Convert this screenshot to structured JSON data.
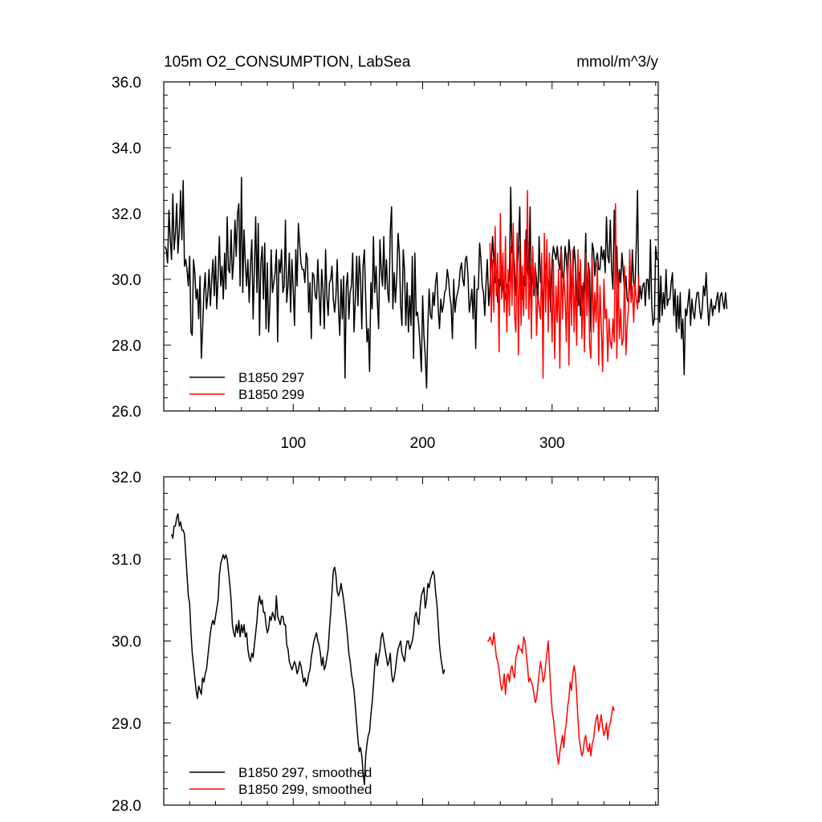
{
  "chart_data": [
    {
      "type": "line",
      "title": "105m O2_CONSUMPTION, LabSea",
      "units": "mmol/m^3/y",
      "xlim": [
        0,
        382
      ],
      "ylim": [
        26.0,
        36.0
      ],
      "x_ticks": [
        100,
        200,
        300
      ],
      "x_tick_labels": [
        "100",
        "200",
        "300"
      ],
      "y_ticks": [
        26.0,
        28.0,
        30.0,
        32.0,
        34.0,
        36.0
      ],
      "y_tick_labels": [
        "26.0",
        "28.0",
        "30.0",
        "32.0",
        "34.0",
        "36.0"
      ],
      "legend_position": "bottom-left",
      "series": [
        {
          "name": "B1850 297",
          "color": "#000000",
          "x_start": 1,
          "values": [
            31.0,
            30.9,
            30.5,
            32.1,
            31.2,
            30.6,
            32.6,
            30.9,
            31.4,
            32.3,
            30.8,
            31.5,
            32.7,
            31.2,
            33.0,
            30.4,
            30.6,
            30.3,
            29.8,
            30.7,
            28.4,
            28.3,
            30.6,
            30.2,
            29.4,
            29.7,
            28.8,
            30.1,
            27.6,
            28.5,
            29.6,
            30.2,
            29.1,
            29.5,
            30.3,
            29.2,
            30.0,
            30.6,
            29.5,
            30.7,
            29.1,
            30.1,
            31.3,
            29.8,
            30.4,
            29.4,
            30.8,
            29.7,
            31.9,
            30.3,
            30.2,
            31.5,
            30.0,
            30.6,
            31.8,
            30.7,
            32.0,
            32.3,
            29.8,
            33.1,
            29.6,
            31.5,
            30.5,
            29.8,
            30.6,
            29.3,
            30.4,
            31.2,
            28.8,
            30.3,
            31.9,
            29.6,
            31.7,
            28.3,
            30.5,
            31.0,
            29.4,
            31.1,
            28.5,
            30.5,
            28.4,
            29.2,
            30.9,
            29.6,
            29.9,
            30.2,
            30.9,
            28.1,
            30.6,
            30.2,
            30.9,
            29.6,
            29.8,
            31.8,
            29.3,
            29.8,
            30.8,
            29.0,
            30.6,
            29.7,
            28.6,
            30.9,
            29.8,
            31.7,
            31.1,
            30.5,
            30.3,
            30.3,
            29.9,
            30.8,
            30.6,
            29.0,
            29.9,
            28.2,
            30.2,
            30.1,
            29.5,
            29.4,
            30.6,
            29.6,
            28.6,
            30.3,
            29.7,
            28.5,
            30.9,
            29.5,
            28.9,
            29.9,
            30.0,
            30.4,
            29.4,
            29.0,
            29.5,
            30.6,
            29.1,
            28.3,
            30.0,
            28.8,
            30.1,
            27.0,
            29.8,
            30.2,
            28.8,
            29.6,
            29.8,
            30.8,
            28.4,
            29.4,
            30.7,
            29.2,
            30.7,
            30.1,
            28.5,
            30.4,
            30.9,
            29.4,
            28.1,
            28.5,
            27.2,
            29.9,
            29.1,
            31.3,
            29.6,
            30.4,
            29.3,
            28.5,
            31.2,
            30.3,
            29.8,
            31.3,
            29.7,
            30.6,
            29.6,
            29.3,
            31.5,
            32.2,
            29.1,
            30.2,
            29.3,
            30.1,
            31.4,
            30.8,
            29.2,
            28.6,
            30.9,
            30.3,
            28.6,
            29.9,
            28.4,
            29.5,
            28.6,
            30.7,
            27.6,
            30.8,
            28.9,
            29.0,
            28.6,
            28.0,
            27.2,
            29.5,
            28.3,
            27.7,
            26.7,
            28.6,
            29.7,
            28.9,
            28.8,
            29.6,
            29.2,
            29.9,
            30.2,
            29.1,
            28.5,
            29.4,
            29.0,
            29.2,
            29.6,
            29.7,
            30.3,
            30.0,
            29.5,
            29.2,
            28.2,
            30.0,
            29.0,
            29.4,
            29.6,
            29.8,
            30.3,
            30.5,
            30.0,
            29.8,
            30.6,
            30.7,
            30.1,
            29.0,
            29.3,
            29.7,
            28.8,
            30.1,
            27.9,
            29.7,
            29.7,
            31.1,
            30.6,
            29.8,
            29.6,
            28.9,
            29.9,
            30.6,
            29.2,
            29.8,
            30.5,
            31.3,
            30.6,
            29.9,
            30.1,
            29.3,
            30.0,
            29.8,
            30.4,
            29.8,
            29.3,
            29.5,
            29.8,
            29.9,
            30.0,
            32.8,
            30.8,
            31.0,
            30.4,
            29.5,
            30.3,
            30.9,
            32.2,
            29.7,
            29.4,
            30.1,
            29.8,
            31.5,
            30.3,
            30.0,
            32.2,
            29.0,
            30.6,
            29.5,
            30.4,
            30.0,
            29.3,
            31.3,
            29.9,
            30.0,
            28.9,
            30.7,
            30.3,
            30.3,
            29.6,
            30.0,
            29.0,
            30.6,
            31.0,
            30.8,
            30.6,
            31.0,
            30.5,
            30.3,
            31.0,
            30.1,
            30.0,
            31.0,
            30.6,
            29.9,
            31.2,
            30.8,
            29.5,
            30.1,
            31.0,
            30.5,
            29.4,
            29.2,
            30.2,
            28.9,
            29.8,
            29.1,
            29.9,
            31.4,
            29.1,
            30.5,
            30.2,
            28.4,
            31.1,
            30.9,
            30.1,
            30.6,
            30.8,
            30.3,
            30.3,
            31.0,
            30.6,
            30.9,
            30.2,
            31.9,
            30.7,
            30.5,
            31.8,
            30.3,
            29.7,
            32.1,
            30.5,
            31.0,
            29.4,
            30.3,
            29.9,
            30.8,
            30.2,
            29.6,
            30.1,
            29.4,
            29.3,
            30.0,
            29.5,
            30.9,
            29.9,
            29.7,
            31.0,
            32.7,
            29.3,
            29.8,
            29.4,
            29.8,
            29.9,
            29.2,
            30.0,
            30.0,
            29.4,
            31.2,
            29.2,
            28.6,
            28.8,
            31.0,
            30.6,
            30.6,
            28.7,
            30.1,
            28.9,
            29.6,
            29.1,
            30.3,
            29.2,
            29.4,
            29.4,
            29.9,
            30.2,
            28.9,
            29.7,
            28.4,
            29.5,
            28.5,
            29.6,
            28.2,
            28.8,
            27.1,
            29.1,
            28.9,
            29.3,
            29.7,
            28.6,
            29.4,
            29.0,
            28.8,
            29.3,
            29.6,
            29.6,
            29.1,
            28.8,
            29.1,
            29.8,
            29.5,
            30.2,
            29.3,
            28.6,
            29.1,
            29.4,
            28.9,
            29.2,
            29.1,
            29.4,
            29.6,
            29.0,
            29.5,
            29.6,
            29.3,
            29.1,
            29.6,
            29.1
          ]
        },
        {
          "name": "B1850 299",
          "color": "#ff0000",
          "x_start": 252,
          "values": [
            31.1,
            28.7,
            30.6,
            29.0,
            31.6,
            29.5,
            30.8,
            27.8,
            32.0,
            29.4,
            30.8,
            29.0,
            31.3,
            28.4,
            30.3,
            28.9,
            31.0,
            29.2,
            31.7,
            28.9,
            28.4,
            31.4,
            27.7,
            31.0,
            28.6,
            30.4,
            28.9,
            31.2,
            29.1,
            32.7,
            28.8,
            30.4,
            28.2,
            31.0,
            29.7,
            30.5,
            28.3,
            29.5,
            29.2,
            28.8,
            30.8,
            27.0,
            31.4,
            29.0,
            31.2,
            28.4,
            30.8,
            29.6,
            28.1,
            30.6,
            27.6,
            29.8,
            28.7,
            30.3,
            27.3,
            30.9,
            28.8,
            30.2,
            29.5,
            28.1,
            30.8,
            27.4,
            30.5,
            28.6,
            30.9,
            28.4,
            30.1,
            28.0,
            30.9,
            29.2,
            30.6,
            28.2,
            29.9,
            27.8,
            30.8,
            28.9,
            30.4,
            28.0,
            27.6,
            30.6,
            28.4,
            29.6,
            28.7,
            30.5,
            27.4,
            29.8,
            28.6,
            27.2,
            30.0,
            28.8,
            29.1,
            27.5,
            28.8,
            28.1,
            27.9,
            28.8,
            28.1,
            32.3,
            27.6,
            30.2,
            28.2,
            29.1,
            28.0,
            28.2,
            30.4,
            27.7,
            28.6,
            29.1,
            30.9,
            29.3,
            29.8,
            28.7,
            29.9,
            29.4,
            29.1,
            30.1
          ]
        }
      ]
    },
    {
      "type": "line",
      "title": "",
      "xlim": [
        0,
        382
      ],
      "ylim": [
        28.0,
        32.0
      ],
      "x_ticks": [
        100,
        200,
        300
      ],
      "y_ticks": [
        28.0,
        29.0,
        30.0,
        31.0,
        32.0
      ],
      "y_tick_labels": [
        "28.0",
        "29.0",
        "30.0",
        "31.0",
        "32.0"
      ],
      "legend_position": "bottom-left",
      "series": [
        {
          "name": "B1850 297, smoothed",
          "color": "#000000",
          "x_start": 6,
          "values": [
            31.3,
            31.25,
            31.4,
            31.4,
            31.5,
            31.55,
            31.4,
            31.45,
            31.35,
            31.35,
            31.3,
            31.05,
            30.8,
            30.55,
            30.45,
            30.1,
            29.85,
            29.7,
            29.55,
            29.4,
            29.3,
            29.45,
            29.4,
            29.35,
            29.55,
            29.5,
            29.6,
            29.65,
            29.8,
            29.95,
            30.1,
            30.2,
            30.25,
            30.2,
            30.3,
            30.4,
            30.5,
            30.8,
            30.95,
            31.0,
            31.05,
            31.0,
            31.05,
            31.0,
            30.85,
            30.7,
            30.5,
            30.2,
            30.1,
            30.05,
            30.2,
            30.1,
            30.25,
            30.05,
            30.2,
            30.1,
            30.2,
            30.05,
            30.1,
            29.9,
            29.8,
            29.75,
            29.85,
            29.8,
            29.95,
            30.1,
            30.25,
            30.45,
            30.55,
            30.45,
            30.5,
            30.35,
            30.35,
            30.2,
            30.1,
            30.15,
            30.3,
            30.25,
            30.35,
            30.3,
            30.25,
            30.55,
            30.3,
            30.25,
            30.2,
            30.3,
            30.3,
            30.2,
            30.2,
            29.95,
            29.9,
            29.75,
            29.7,
            29.65,
            29.7,
            29.75,
            29.7,
            29.6,
            29.65,
            29.75,
            29.7,
            29.6,
            29.5,
            29.55,
            29.45,
            29.5,
            29.6,
            29.65,
            29.8,
            29.9,
            30.0,
            30.05,
            30.1,
            30.0,
            29.95,
            29.85,
            29.7,
            29.8,
            29.65,
            29.7,
            29.8,
            29.9,
            30.15,
            30.35,
            30.6,
            30.85,
            30.9,
            30.8,
            30.6,
            30.55,
            30.6,
            30.7,
            30.6,
            30.5,
            30.35,
            30.2,
            30.05,
            29.85,
            29.75,
            29.6,
            29.5,
            29.4,
            29.2,
            29.0,
            28.8,
            28.65,
            28.7,
            28.6,
            28.4,
            28.25,
            28.6,
            28.75,
            28.85,
            28.9,
            29.1,
            29.25,
            29.45,
            29.7,
            29.85,
            29.7,
            29.8,
            29.9,
            30.05,
            30.1,
            30.0,
            29.9,
            29.8,
            29.7,
            29.75,
            29.85,
            29.6,
            29.5,
            29.55,
            29.65,
            29.8,
            29.9,
            29.95,
            30.0,
            29.85,
            29.8,
            29.75,
            29.9,
            30.0,
            30.0,
            29.9,
            29.95,
            30.0,
            30.1,
            30.3,
            30.35,
            30.25,
            30.2,
            30.4,
            30.55,
            30.6,
            30.65,
            30.4,
            30.5,
            30.7,
            30.65,
            30.75,
            30.8,
            30.85,
            30.8,
            30.6,
            30.45,
            30.2,
            29.95,
            29.8,
            29.7,
            29.6,
            29.65
          ]
        },
        {
          "name": "B1850 299, smoothed",
          "color": "#ff0000",
          "x_start": 250,
          "values": [
            30.0,
            30.0,
            30.05,
            30.0,
            29.95,
            30.1,
            29.95,
            29.8,
            29.75,
            29.65,
            29.5,
            29.4,
            29.45,
            29.6,
            29.35,
            29.55,
            29.6,
            29.5,
            29.65,
            29.7,
            29.6,
            29.55,
            29.8,
            29.85,
            29.95,
            29.9,
            29.9,
            29.85,
            30.05,
            30.0,
            29.85,
            29.7,
            29.5,
            29.55,
            29.5,
            29.45,
            29.35,
            29.25,
            29.3,
            29.45,
            29.6,
            29.75,
            29.65,
            29.5,
            29.55,
            29.7,
            29.85,
            30.0,
            29.7,
            29.4,
            29.15,
            29.05,
            28.9,
            28.75,
            28.6,
            28.5,
            28.65,
            28.75,
            28.85,
            28.7,
            28.9,
            29.0,
            29.2,
            29.3,
            29.5,
            29.4,
            29.6,
            29.7,
            29.6,
            29.35,
            29.05,
            28.8,
            28.7,
            28.6,
            28.65,
            28.8,
            28.85,
            28.7,
            28.65,
            28.75,
            28.6,
            28.75,
            28.8,
            28.95,
            29.05,
            29.1,
            28.9,
            29.0,
            29.1,
            28.95,
            28.85,
            28.9,
            29.0,
            28.8,
            28.95,
            29.0,
            29.1,
            29.2,
            29.15
          ]
        }
      ]
    }
  ]
}
